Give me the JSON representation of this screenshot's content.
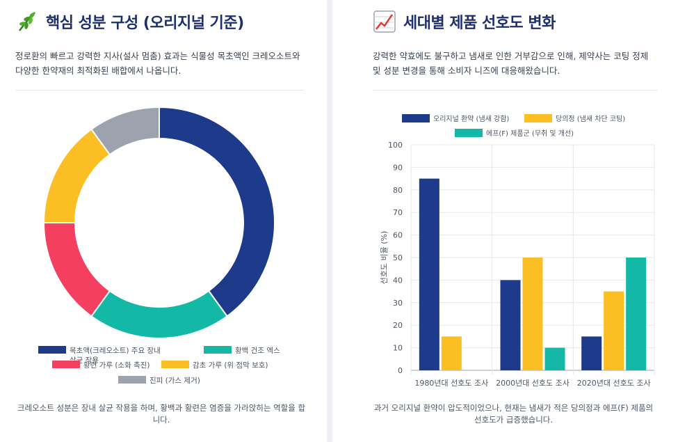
{
  "left": {
    "title": "핵심 성분 구성 (오리지널 기준)",
    "icon": "herb-leaf-icon",
    "description": "정로환의 빠르고 강력한 지사(설사 멈춤) 효과는 식물성 목초액인 크레오소트와 다양한 한약재의 최적화된 배합에서 나옵니다.",
    "note": "크레오소트 성분은 장내 살균 작용을 하며, 황백과 황련은 염증을 가라앉히는 역할을 합니다."
  },
  "right": {
    "title": "세대별 제품 선호도 변화",
    "icon": "chart-increasing-icon",
    "description": "강력한 약효에도 불구하고 냄새로 인한 거부감으로 인해, 제약사는 코팅 정제 및 성분 변경을 통해 소비자 니즈에 대응해왔습니다.",
    "note": "과거 오리지널 환약이 압도적이었으나, 현재는 냄새가 적은 당의정과 에프(F) 제품의 선호도가 급증했습니다."
  },
  "chart_data": [
    {
      "type": "pie",
      "donut": true,
      "labels": [
        "목초액(크레오소트) 주요 장내 살균 작용",
        "황백 건조 엑스",
        "황련 가루 (소화 촉진)",
        "감초 가루 (위 점막 보호)",
        "진피 (가스 제거)"
      ],
      "values": [
        40,
        20,
        15,
        15,
        10
      ],
      "colors": [
        "#1e3a8a",
        "#14b8a6",
        "#f43f5e",
        "#fbbf24",
        "#9ca3af"
      ],
      "legend_position": "bottom"
    },
    {
      "type": "bar",
      "categories": [
        "1980년대 선호도 조사",
        "2000년대 선호도 조사",
        "2020년대 선호도 조사"
      ],
      "series": [
        {
          "name": "오리지널 환약 (냄새 강함)",
          "values": [
            85,
            40,
            15
          ],
          "color": "#1e3a8a"
        },
        {
          "name": "당의정 (냄새 차단 코팅)",
          "values": [
            15,
            50,
            35
          ],
          "color": "#fbbf24"
        },
        {
          "name": "에프(F) 제품군 (무취 및 개선)",
          "values": [
            0,
            10,
            50
          ],
          "color": "#14b8a6"
        }
      ],
      "ylabel": "선호도 비율 (%)",
      "ylim": [
        0,
        100
      ],
      "yticks": [
        0,
        10,
        20,
        30,
        40,
        50,
        60,
        70,
        80,
        90,
        100
      ],
      "grid": true,
      "legend_position": "top"
    }
  ]
}
